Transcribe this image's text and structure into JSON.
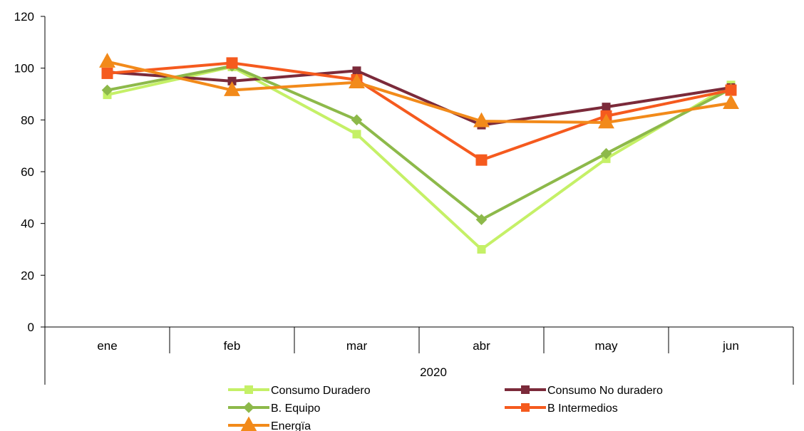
{
  "chart_data": {
    "type": "line",
    "categories": [
      "ene",
      "feb",
      "mar",
      "abr",
      "may",
      "jun"
    ],
    "group_label": "2020",
    "ylim": [
      0,
      120
    ],
    "yticks": [
      0,
      20,
      40,
      60,
      80,
      100,
      120
    ],
    "grid": false,
    "legend_position": "bottom",
    "series": [
      {
        "name": "Consumo Duradero",
        "color": "#c5f067",
        "marker": "square",
        "values": [
          89.7,
          100.5,
          74.5,
          30.0,
          65.0,
          93.5
        ]
      },
      {
        "name": "Consumo No duradero",
        "color": "#7b2a3a",
        "marker": "square",
        "values": [
          98.5,
          95.0,
          99.0,
          78.0,
          85.0,
          92.5
        ]
      },
      {
        "name": "B. Equipo",
        "color": "#8db94a",
        "marker": "diamond",
        "values": [
          91.5,
          100.8,
          80.0,
          41.5,
          67.0,
          92.0
        ]
      },
      {
        "name": "B Intermedios",
        "color": "#f55a1e",
        "marker": "square",
        "values": [
          98.0,
          102.0,
          95.5,
          64.5,
          81.5,
          91.5
        ]
      },
      {
        "name": "Energïa",
        "color": "#f28a1a",
        "marker": "triangle",
        "values": [
          102.5,
          91.5,
          94.5,
          79.5,
          79.0,
          86.5
        ]
      }
    ]
  }
}
